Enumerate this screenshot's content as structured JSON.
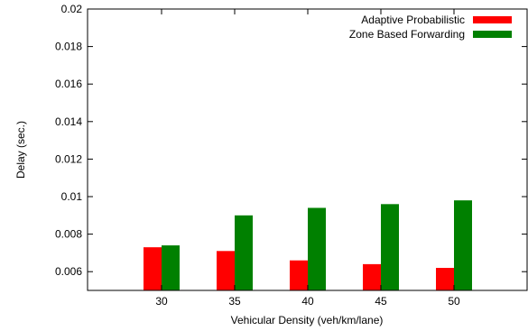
{
  "chart_data": {
    "type": "bar",
    "title": "",
    "xlabel": "Vehicular Density (veh/km/lane)",
    "ylabel": "Delay (sec.)",
    "categories": [
      "30",
      "35",
      "40",
      "45",
      "50"
    ],
    "ylim": [
      0.005,
      0.02
    ],
    "yticks": [
      "0.006",
      "0.008",
      "0.01",
      "0.012",
      "0.014",
      "0.016",
      "0.018",
      "0.02"
    ],
    "grid": false,
    "legend_position": "top-right",
    "series": [
      {
        "name": "Adaptive Probabilistic",
        "color": "#ff0000",
        "values": [
          0.0073,
          0.0071,
          0.0066,
          0.0064,
          0.0062
        ]
      },
      {
        "name": "Zone Based Forwarding",
        "color": "#008000",
        "values": [
          0.0074,
          0.009,
          0.0094,
          0.0096,
          0.0098
        ]
      }
    ]
  }
}
